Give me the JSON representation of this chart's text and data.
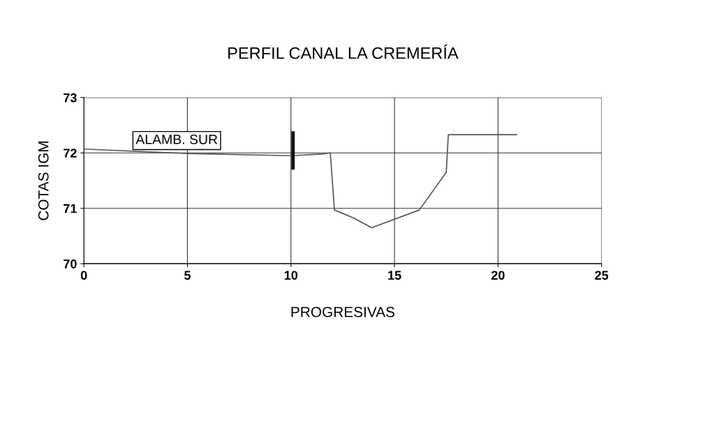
{
  "chart_data": {
    "type": "line",
    "title": "PERFIL CANAL LA CREMERÍA",
    "xlabel": "PROGRESIVAS",
    "ylabel": "COTAS IGM",
    "series": [
      {
        "color": "#555555",
        "x": [
          0,
          5,
          10,
          11.5,
          11.9,
          12.1,
          13.0,
          13.9,
          16.2,
          17.5,
          17.6,
          20.9
        ],
        "values": [
          72.07,
          71.99,
          71.95,
          71.98,
          72.0,
          70.97,
          70.83,
          70.65,
          70.97,
          71.65,
          72.33,
          72.33
        ]
      },
      {
        "color": "#111111",
        "x": [
          10.1,
          10.1
        ],
        "values": [
          71.73,
          72.36
        ]
      }
    ],
    "annotations": [
      "ALAMB. SUR"
    ],
    "xlim": [
      0,
      25
    ],
    "xticks": [
      0,
      5,
      10,
      15,
      20,
      25
    ],
    "ylim": [
      70,
      73
    ],
    "yticks": [
      70,
      71,
      72,
      73
    ],
    "grid": true
  }
}
